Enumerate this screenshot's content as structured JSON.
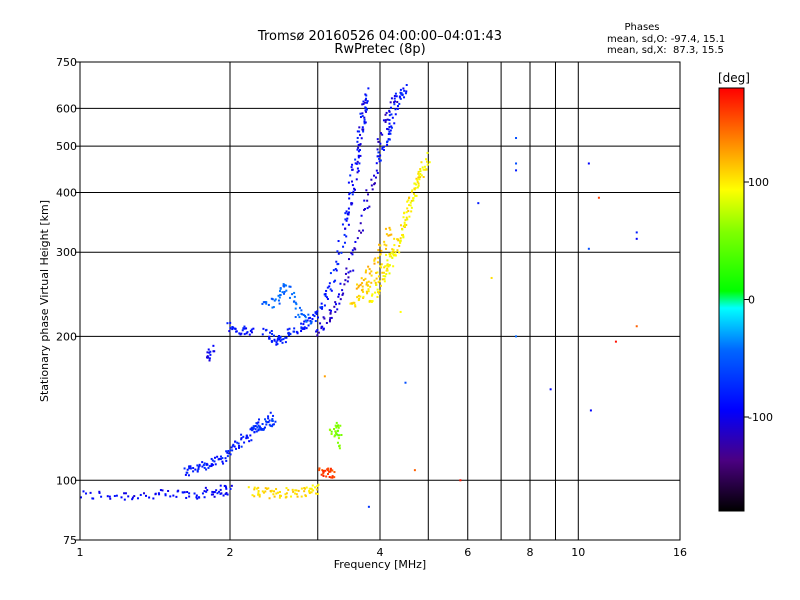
{
  "chart_data": {
    "type": "scatter",
    "title": "Tromsø 20160526 04:00:00–04:01:43",
    "subtitle": "RwPretec (8p)",
    "xlabel": "Frequency [MHz]",
    "ylabel": "Stationary phase Virtual Height [km]",
    "x_scale": "log2",
    "xlim": [
      1,
      16
    ],
    "ylim": [
      75,
      750
    ],
    "y_scale": "log",
    "x_ticks": [
      "1",
      "2",
      "4",
      "6",
      "8",
      "10",
      "16"
    ],
    "x_tick_values": [
      1,
      2,
      4,
      6,
      8,
      10,
      16
    ],
    "x_grid_values": [
      1,
      2,
      3,
      4,
      5,
      6,
      7,
      8,
      9,
      10,
      16
    ],
    "y_ticks": [
      "75",
      "100",
      "200",
      "300",
      "400",
      "500",
      "600",
      "750"
    ],
    "y_tick_values": [
      75,
      100,
      200,
      300,
      400,
      500,
      600,
      750
    ],
    "y_grid_values": [
      100,
      200,
      300,
      400,
      500,
      600
    ],
    "grid": true,
    "phase_info": {
      "title": "Phases",
      "line_o": "mean, sd,O: -97.4, 15.1",
      "line_x": "mean, sd,X:  87.3, 15.5"
    },
    "colorbar": {
      "unit": "[deg]",
      "range": [
        -180,
        180
      ],
      "tick_labels": [
        "100",
        "0",
        "-100"
      ],
      "tick_values": [
        100,
        0,
        -100
      ]
    },
    "traces": [
      {
        "phase": -110,
        "points": [
          [
            1.0,
            93
          ],
          [
            1.2,
            93
          ],
          [
            1.4,
            93
          ],
          [
            1.6,
            93.5
          ],
          [
            1.78,
            94
          ],
          [
            1.9,
            95
          ],
          [
            2.0,
            96
          ]
        ]
      },
      {
        "phase": -100,
        "points": [
          [
            1.63,
            104
          ],
          [
            1.7,
            106
          ],
          [
            1.8,
            108
          ],
          [
            1.9,
            110
          ],
          [
            2.0,
            115
          ],
          [
            2.1,
            120
          ],
          [
            2.2,
            125
          ],
          [
            2.3,
            132
          ]
        ]
      },
      {
        "phase": 110,
        "points": [
          [
            2.2,
            95
          ],
          [
            2.35,
            94
          ],
          [
            2.5,
            94
          ],
          [
            2.7,
            94.5
          ],
          [
            2.9,
            95
          ],
          [
            3.0,
            96
          ]
        ]
      },
      {
        "phase": -110,
        "points": [
          [
            1.8,
            180
          ],
          [
            1.85,
            190
          ]
        ]
      },
      {
        "phase": -105,
        "points": [
          [
            2.0,
            210
          ],
          [
            2.1,
            205
          ],
          [
            2.25,
            205
          ]
        ]
      },
      {
        "phase": -100,
        "points": [
          [
            2.35,
            205
          ],
          [
            2.45,
            195
          ],
          [
            2.55,
            198
          ],
          [
            2.7,
            205
          ],
          [
            2.85,
            212
          ],
          [
            3.0,
            222
          ],
          [
            3.15,
            245
          ],
          [
            3.3,
            290
          ],
          [
            3.45,
            370
          ],
          [
            3.6,
            480
          ],
          [
            3.7,
            580
          ],
          [
            3.8,
            650
          ]
        ]
      },
      {
        "phase": -70,
        "points": [
          [
            2.35,
            230
          ],
          [
            2.5,
            240
          ],
          [
            2.6,
            255
          ],
          [
            2.75,
            225
          ],
          [
            2.9,
            215
          ]
        ]
      },
      {
        "phase": -120,
        "points": [
          [
            3.0,
            205
          ],
          [
            3.15,
            218
          ],
          [
            3.3,
            240
          ],
          [
            3.5,
            280
          ],
          [
            3.7,
            360
          ],
          [
            3.9,
            440
          ],
          [
            4.1,
            560
          ],
          [
            4.3,
            640
          ]
        ]
      },
      {
        "phase": -115,
        "points": [
          [
            3.4,
            330
          ],
          [
            3.55,
            420
          ],
          [
            3.65,
            520
          ],
          [
            3.75,
            640
          ]
        ]
      },
      {
        "phase": -100,
        "points": [
          [
            4.0,
            470
          ],
          [
            4.15,
            520
          ],
          [
            4.25,
            590
          ],
          [
            4.4,
            640
          ],
          [
            4.5,
            660
          ]
        ]
      },
      {
        "phase": 110,
        "points": [
          [
            3.5,
            230
          ],
          [
            3.7,
            245
          ],
          [
            3.9,
            260
          ],
          [
            4.1,
            280
          ],
          [
            4.3,
            310
          ],
          [
            4.5,
            350
          ],
          [
            4.7,
            400
          ],
          [
            4.9,
            460
          ]
        ]
      },
      {
        "phase": 100,
        "points": [
          [
            3.8,
            235
          ],
          [
            4.0,
            255
          ],
          [
            4.2,
            285
          ],
          [
            4.4,
            320
          ],
          [
            4.6,
            380
          ],
          [
            4.8,
            430
          ],
          [
            5.0,
            480
          ]
        ]
      },
      {
        "phase": 120,
        "points": [
          [
            3.6,
            250
          ],
          [
            3.8,
            270
          ],
          [
            4.0,
            300
          ],
          [
            4.2,
            340
          ]
        ]
      },
      {
        "phase": 60,
        "points": [
          [
            3.2,
            125
          ],
          [
            3.3,
            130
          ],
          [
            3.3,
            118
          ]
        ]
      },
      {
        "phase": 160,
        "points": [
          [
            3.05,
            105
          ],
          [
            3.15,
            103
          ],
          [
            3.25,
            104
          ]
        ]
      },
      {
        "phase": -90,
        "points": [
          [
            2.2,
            130
          ],
          [
            2.3,
            128
          ],
          [
            2.4,
            132
          ],
          [
            2.45,
            136
          ]
        ]
      }
    ],
    "scatter_points": [
      {
        "x": 6.3,
        "y": 380,
        "phase": -100
      },
      {
        "x": 6.7,
        "y": 265,
        "phase": 110
      },
      {
        "x": 7.5,
        "y": 520,
        "phase": -80
      },
      {
        "x": 7.5,
        "y": 460,
        "phase": -80
      },
      {
        "x": 7.5,
        "y": 445,
        "phase": -100
      },
      {
        "x": 7.5,
        "y": 200,
        "phase": -70
      },
      {
        "x": 8.8,
        "y": 155,
        "phase": -110
      },
      {
        "x": 10.5,
        "y": 460,
        "phase": -110
      },
      {
        "x": 11.0,
        "y": 390,
        "phase": 160
      },
      {
        "x": 10.5,
        "y": 305,
        "phase": -80
      },
      {
        "x": 10.6,
        "y": 140,
        "phase": -110
      },
      {
        "x": 11.9,
        "y": 195,
        "phase": 175
      },
      {
        "x": 13.1,
        "y": 330,
        "phase": -100
      },
      {
        "x": 13.1,
        "y": 320,
        "phase": -110
      },
      {
        "x": 13.1,
        "y": 210,
        "phase": 150
      },
      {
        "x": 5.8,
        "y": 100,
        "phase": 175
      },
      {
        "x": 4.4,
        "y": 225,
        "phase": 100
      },
      {
        "x": 4.5,
        "y": 160,
        "phase": -80
      },
      {
        "x": 3.8,
        "y": 88,
        "phase": -90
      },
      {
        "x": 4.7,
        "y": 105,
        "phase": 150
      },
      {
        "x": 3.1,
        "y": 165,
        "phase": 130
      }
    ]
  }
}
